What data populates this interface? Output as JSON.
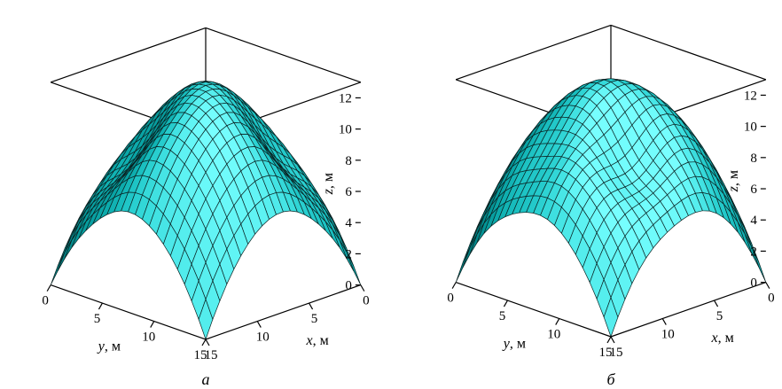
{
  "chart_data": [
    {
      "type": "surface3d",
      "panel_label": "а",
      "xlabel_var": "x",
      "xlabel_unit": ", м",
      "ylabel_var": "y",
      "ylabel_unit": ", м",
      "zlabel_var": "z",
      "zlabel_unit": ", м",
      "xlim": [
        0,
        15
      ],
      "ylim": [
        0,
        15
      ],
      "zlim": [
        0,
        13
      ],
      "x_ticks": [
        "0",
        "5",
        "10",
        "15"
      ],
      "y_ticks": [
        "0",
        "5",
        "10",
        "15"
      ],
      "z_ticks": [
        "0",
        "2",
        "4",
        "6",
        "8",
        "10",
        "12"
      ],
      "surface_color": "#00e5e5",
      "peak_z": 13,
      "shape": "paraboloid with two symmetric valleys on the front faces"
    },
    {
      "type": "surface3d",
      "panel_label": "б",
      "xlabel_var": "x",
      "xlabel_unit": ", м",
      "ylabel_var": "y",
      "ylabel_unit": ", м",
      "zlabel_var": "z",
      "zlabel_unit": ", м",
      "xlim": [
        0,
        15
      ],
      "ylim": [
        0,
        15
      ],
      "zlim": [
        0,
        13
      ],
      "x_ticks": [
        "0",
        "5",
        "10",
        "15"
      ],
      "y_ticks": [
        "0",
        "5",
        "10",
        "15"
      ],
      "z_ticks": [
        "0",
        "2",
        "4",
        "6",
        "8",
        "10",
        "12"
      ],
      "surface_color": "#00e5e5",
      "peak_z": 13,
      "shape": "paraboloid with an asymmetric valley near the front corner"
    }
  ]
}
